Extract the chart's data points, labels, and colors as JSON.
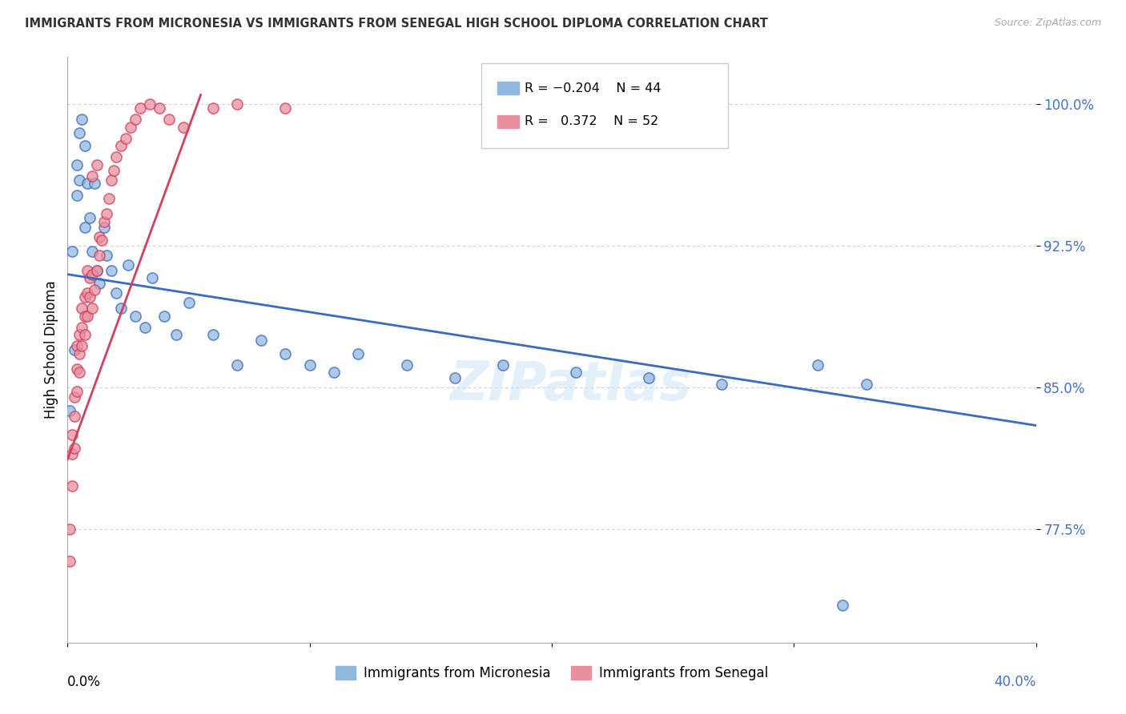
{
  "title": "IMMIGRANTS FROM MICRONESIA VS IMMIGRANTS FROM SENEGAL HIGH SCHOOL DIPLOMA CORRELATION CHART",
  "source": "Source: ZipAtlas.com",
  "ylabel": "High School Diploma",
  "yticks": [
    0.775,
    0.85,
    0.925,
    1.0
  ],
  "ytick_labels": [
    "77.5%",
    "85.0%",
    "92.5%",
    "100.0%"
  ],
  "xlim": [
    0.0,
    0.4
  ],
  "ylim": [
    0.715,
    1.025
  ],
  "blue_color": "#92b8e0",
  "pink_color": "#e8909e",
  "trendline_blue": "#3a6bbf",
  "trendline_pink": "#d44060",
  "watermark": "ZIPatlas",
  "micronesia_x": [
    0.001,
    0.002,
    0.003,
    0.004,
    0.004,
    0.005,
    0.005,
    0.006,
    0.007,
    0.007,
    0.008,
    0.009,
    0.01,
    0.011,
    0.012,
    0.013,
    0.015,
    0.016,
    0.018,
    0.02,
    0.022,
    0.025,
    0.028,
    0.032,
    0.035,
    0.04,
    0.045,
    0.05,
    0.06,
    0.07,
    0.08,
    0.09,
    0.1,
    0.11,
    0.12,
    0.14,
    0.16,
    0.18,
    0.21,
    0.24,
    0.27,
    0.31,
    0.32,
    0.33
  ],
  "micronesia_y": [
    0.838,
    0.922,
    0.87,
    0.952,
    0.968,
    0.985,
    0.96,
    0.992,
    0.978,
    0.935,
    0.958,
    0.94,
    0.922,
    0.958,
    0.912,
    0.905,
    0.935,
    0.92,
    0.912,
    0.9,
    0.892,
    0.915,
    0.888,
    0.882,
    0.908,
    0.888,
    0.878,
    0.895,
    0.878,
    0.862,
    0.875,
    0.868,
    0.862,
    0.858,
    0.868,
    0.862,
    0.855,
    0.862,
    0.858,
    0.855,
    0.852,
    0.862,
    0.735,
    0.852
  ],
  "senegal_x": [
    0.001,
    0.001,
    0.002,
    0.002,
    0.002,
    0.003,
    0.003,
    0.003,
    0.004,
    0.004,
    0.004,
    0.005,
    0.005,
    0.005,
    0.006,
    0.006,
    0.006,
    0.007,
    0.007,
    0.007,
    0.008,
    0.008,
    0.008,
    0.009,
    0.009,
    0.01,
    0.01,
    0.011,
    0.012,
    0.013,
    0.013,
    0.014,
    0.015,
    0.016,
    0.017,
    0.018,
    0.019,
    0.02,
    0.022,
    0.024,
    0.026,
    0.028,
    0.03,
    0.034,
    0.038,
    0.042,
    0.048,
    0.06,
    0.07,
    0.09,
    0.01,
    0.012
  ],
  "senegal_y": [
    0.758,
    0.775,
    0.798,
    0.815,
    0.825,
    0.818,
    0.835,
    0.845,
    0.848,
    0.86,
    0.872,
    0.858,
    0.868,
    0.878,
    0.872,
    0.882,
    0.892,
    0.878,
    0.888,
    0.898,
    0.888,
    0.9,
    0.912,
    0.898,
    0.908,
    0.892,
    0.91,
    0.902,
    0.912,
    0.92,
    0.93,
    0.928,
    0.938,
    0.942,
    0.95,
    0.96,
    0.965,
    0.972,
    0.978,
    0.982,
    0.988,
    0.992,
    0.998,
    1.0,
    0.998,
    0.992,
    0.988,
    0.998,
    1.0,
    0.998,
    0.962,
    0.968
  ],
  "trendline_blue_x0": 0.0,
  "trendline_blue_y0": 0.91,
  "trendline_blue_x1": 0.4,
  "trendline_blue_y1": 0.83,
  "trendline_pink_x0": 0.0,
  "trendline_pink_y0": 0.812,
  "trendline_pink_x1": 0.055,
  "trendline_pink_y1": 1.005
}
